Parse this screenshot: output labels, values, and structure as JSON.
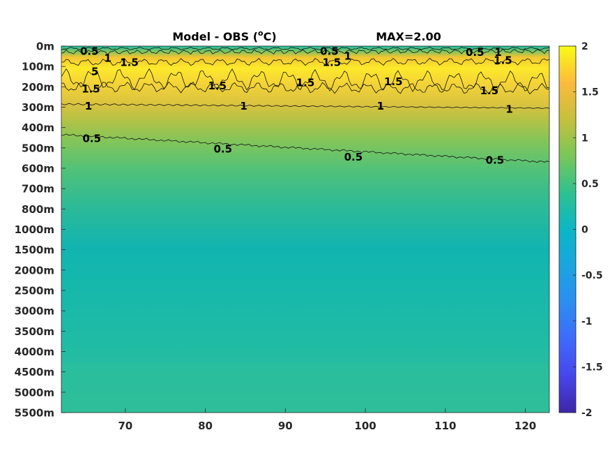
{
  "chart_data": {
    "type": "heatmap",
    "title": "Model - OBS (°C)",
    "title_parts": {
      "prefix": "Model - OBS (",
      "sup": "o",
      "suffix": "C)"
    },
    "max_label": "MAX=2.00",
    "xlabel": "",
    "ylabel": "",
    "xlim": [
      62,
      123
    ],
    "x_ticks": [
      70,
      80,
      90,
      100,
      110,
      120
    ],
    "y_tick_labels": [
      "0m",
      "100m",
      "200m",
      "300m",
      "400m",
      "500m",
      "600m",
      "700m",
      "800m",
      "1000m",
      "1500m",
      "2000m",
      "2500m",
      "3000m",
      "3500m",
      "4000m",
      "4500m",
      "5000m",
      "5500m"
    ],
    "colorbar": {
      "limits": [
        -2,
        2
      ],
      "ticks": [
        "2",
        "1.5",
        "1",
        "0.5",
        "0",
        "-0.5",
        "-1",
        "-1.5",
        "-2"
      ],
      "colormap": "parula"
    },
    "contour_levels": [
      0.5,
      1,
      1.5
    ],
    "contour_labels": [
      {
        "text": "0.5",
        "x": 65.5,
        "depth_index": 0.25
      },
      {
        "text": "1",
        "x": 67.8,
        "depth_index": 0.6
      },
      {
        "text": "1.5",
        "x": 70.5,
        "depth_index": 0.8
      },
      {
        "text": "5",
        "x": 66.2,
        "depth_index": 1.25
      },
      {
        "text": "0.5",
        "x": 95.5,
        "depth_index": 0.25
      },
      {
        "text": "1",
        "x": 97.8,
        "depth_index": 0.5
      },
      {
        "text": "1.5",
        "x": 95.8,
        "depth_index": 0.8
      },
      {
        "text": "0.5",
        "x": 113.7,
        "depth_index": 0.3
      },
      {
        "text": "1",
        "x": 116.6,
        "depth_index": 0.3
      },
      {
        "text": "1.5",
        "x": 117.2,
        "depth_index": 0.7
      },
      {
        "text": "1.5",
        "x": 65.7,
        "depth_index": 2.1
      },
      {
        "text": "1.5",
        "x": 81.5,
        "depth_index": 1.95
      },
      {
        "text": "1.5",
        "x": 92.5,
        "depth_index": 1.8
      },
      {
        "text": "1.5",
        "x": 103.5,
        "depth_index": 1.75
      },
      {
        "text": "1.5",
        "x": 115.5,
        "depth_index": 2.2
      },
      {
        "text": "1",
        "x": 65.4,
        "depth_index": 2.95
      },
      {
        "text": "1",
        "x": 84.8,
        "depth_index": 2.95
      },
      {
        "text": "1",
        "x": 101.9,
        "depth_index": 2.95
      },
      {
        "text": "1",
        "x": 118.0,
        "depth_index": 3.1
      },
      {
        "text": "0.5",
        "x": 65.8,
        "depth_index": 4.55
      },
      {
        "text": "0.5",
        "x": 82.2,
        "depth_index": 5.05
      },
      {
        "text": "0.5",
        "x": 98.5,
        "depth_index": 5.45
      },
      {
        "text": "0.5",
        "x": 116.2,
        "depth_index": 5.6
      }
    ]
  }
}
